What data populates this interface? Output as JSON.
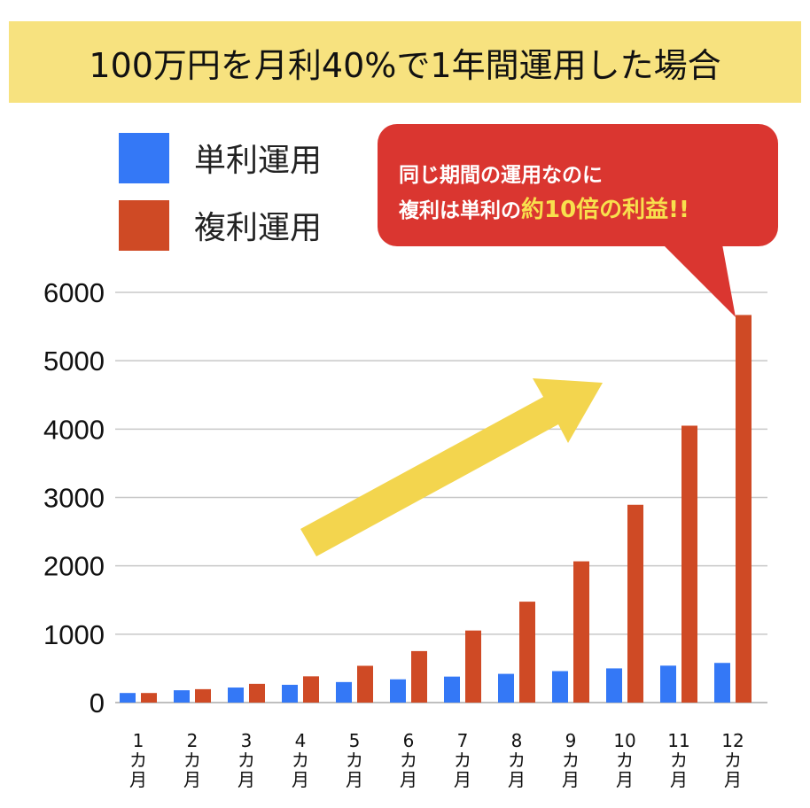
{
  "title": "100万円を月利40%で1年間運用した場合",
  "legend": [
    {
      "label": "単利運用",
      "color": "#3478f6"
    },
    {
      "label": "複利運用",
      "color": "#cf4a25"
    }
  ],
  "callout": {
    "line1": "同じ期間の運用なのに",
    "line2_prefix": "複利は単利の",
    "line2_highlight": "約10倍の利益!!",
    "color": "#da3630",
    "highlight_color": "#f8e04d"
  },
  "arrow_color": "#f3d54e",
  "chart_data": {
    "type": "bar",
    "title": "100万円を月利40%で1年間運用した場合",
    "xlabel": "",
    "ylabel": "",
    "ylim": [
      0,
      6000
    ],
    "yticks": [
      0,
      1000,
      2000,
      3000,
      4000,
      5000,
      6000
    ],
    "grid": true,
    "legend_position": "top-left",
    "categories": [
      [
        "1",
        "カ",
        "月"
      ],
      [
        "2",
        "カ",
        "月"
      ],
      [
        "3",
        "カ",
        "月"
      ],
      [
        "4",
        "カ",
        "月"
      ],
      [
        "5",
        "カ",
        "月"
      ],
      [
        "6",
        "カ",
        "月"
      ],
      [
        "7",
        "カ",
        "月"
      ],
      [
        "8",
        "カ",
        "月"
      ],
      [
        "9",
        "カ",
        "月"
      ],
      [
        "10",
        "カ",
        "月"
      ],
      [
        "11",
        "カ",
        "月"
      ],
      [
        "12",
        "カ",
        "月"
      ]
    ],
    "series": [
      {
        "name": "単利運用",
        "color": "#3478f6",
        "values": [
          140,
          180,
          220,
          260,
          300,
          340,
          380,
          420,
          460,
          500,
          540,
          580
        ]
      },
      {
        "name": "複利運用",
        "color": "#cf4a25",
        "values": [
          140,
          196,
          274,
          384,
          538,
          753,
          1054,
          1476,
          2066,
          2893,
          4050,
          5669
        ]
      }
    ]
  }
}
